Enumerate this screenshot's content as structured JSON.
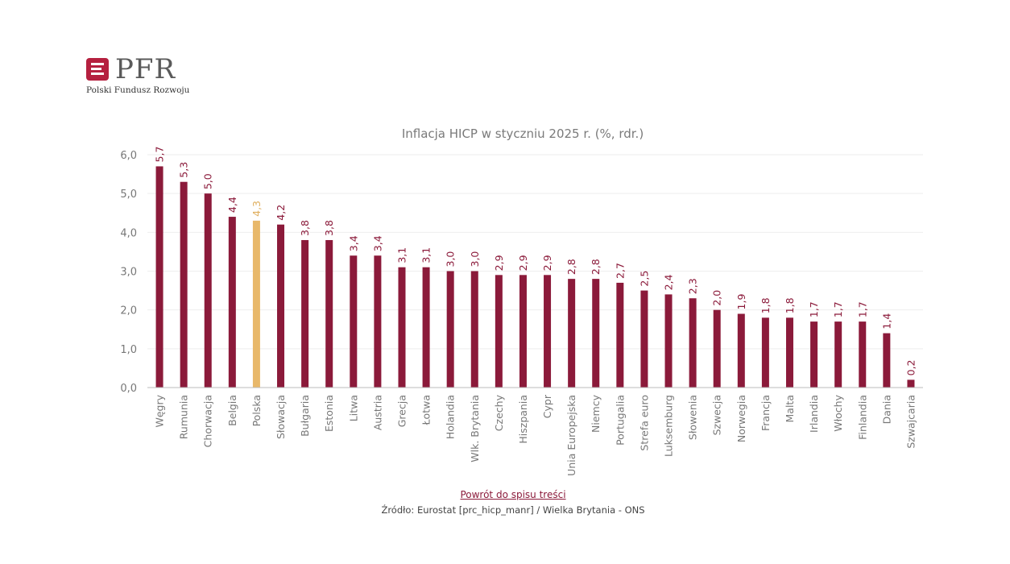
{
  "brand": {
    "name": "PFR",
    "subtitle": "Polski Fundusz Rozwoju",
    "icon": "pfr-logo-icon"
  },
  "colors": {
    "bar": "#8b1a3a",
    "highlight": "#e8b86a",
    "label": "#8b1a3a",
    "highlight_label": "#e0b060",
    "axis": "#777777",
    "grid": "#eeeeee"
  },
  "footer": {
    "link": "Powrót do spisu treści",
    "source": "Źródło: Eurostat [prc_hicp_manr] / Wielka Brytania - ONS"
  },
  "chart_data": {
    "type": "bar",
    "title": "Inflacja HICP w styczniu 2025 r. (%, rdr.)",
    "xlabel": "",
    "ylabel": "",
    "ylim": [
      0,
      6
    ],
    "yticks": [
      "0,0",
      "1,0",
      "2,0",
      "3,0",
      "4,0",
      "5,0",
      "6,0"
    ],
    "grid": true,
    "highlight": "Polska",
    "categories": [
      "Węgry",
      "Rumunia",
      "Chorwacja",
      "Belgia",
      "Polska",
      "Słowacja",
      "Bułgaria",
      "Estonia",
      "Litwa",
      "Austria",
      "Grecja",
      "Łotwa",
      "Holandia",
      "Wlk. Brytania",
      "Czechy",
      "Hiszpania",
      "Cypr",
      "Unia Europejska",
      "Niemcy",
      "Portugalia",
      "Strefa euro",
      "Luksemburg",
      "Słowenia",
      "Szwecja",
      "Norwegia",
      "Francja",
      "Malta",
      "Irlandia",
      "Włochy",
      "Finlandia",
      "Dania",
      "Szwajcaria"
    ],
    "values": [
      5.7,
      5.3,
      5.0,
      4.4,
      4.3,
      4.2,
      3.8,
      3.8,
      3.4,
      3.4,
      3.1,
      3.1,
      3.0,
      3.0,
      2.9,
      2.9,
      2.9,
      2.8,
      2.8,
      2.7,
      2.5,
      2.4,
      2.3,
      2.0,
      1.9,
      1.8,
      1.8,
      1.7,
      1.7,
      1.7,
      1.4,
      0.2
    ],
    "value_labels": [
      "5,7",
      "5,3",
      "5,0",
      "4,4",
      "4,3",
      "4,2",
      "3,8",
      "3,8",
      "3,4",
      "3,4",
      "3,1",
      "3,1",
      "3,0",
      "3,0",
      "2,9",
      "2,9",
      "2,9",
      "2,8",
      "2,8",
      "2,7",
      "2,5",
      "2,4",
      "2,3",
      "2,0",
      "1,9",
      "1,8",
      "1,8",
      "1,7",
      "1,7",
      "1,7",
      "1,4",
      "0,2"
    ]
  }
}
